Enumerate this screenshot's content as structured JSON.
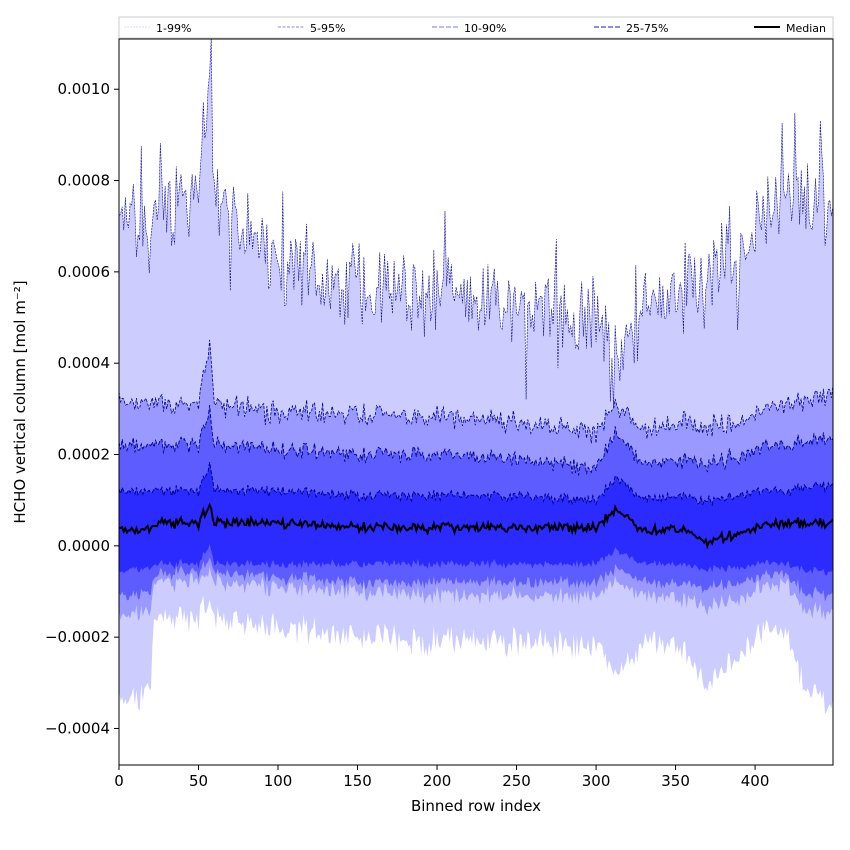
{
  "chart_data": {
    "type": "area",
    "xlabel": "Binned row index",
    "ylabel": "HCHO vertical column [mol m⁻²]",
    "xlim": [
      0,
      449
    ],
    "ylim": [
      -0.00048,
      0.00111
    ],
    "x_ticks": [
      0,
      50,
      100,
      150,
      200,
      250,
      300,
      350,
      400
    ],
    "y_ticks": [
      -0.0004,
      -0.0002,
      0.0,
      0.0002,
      0.0004,
      0.0006,
      0.0008,
      0.001
    ],
    "y_tick_labels": [
      "−0.0004",
      "−0.0002",
      "0.0000",
      "0.0002",
      "0.0004",
      "0.0006",
      "0.0008",
      "0.0010"
    ],
    "legend_position": "top (above plot, single row)",
    "legend": [
      "1-99%",
      "5-95%",
      "10-90%",
      "25-75%",
      "Median"
    ],
    "colors": {
      "band_1_99": "#ccccff",
      "band_5_95": "#9999ff",
      "band_10_90": "#5c5cff",
      "band_25_75": "#2b2bff",
      "percentile_line": "#00008b",
      "median_line": "#000000"
    },
    "series_profile": {
      "x": [
        0,
        10,
        20,
        22,
        25,
        50,
        57,
        60,
        100,
        150,
        200,
        250,
        300,
        313,
        330,
        350,
        371,
        400,
        420,
        430,
        449
      ],
      "p99": [
        0.00072,
        0.00074,
        0.00066,
        0.00071,
        0.00072,
        0.00078,
        0.00104,
        0.00075,
        0.00062,
        0.00056,
        0.00056,
        0.00052,
        0.0005,
        0.0004,
        0.00051,
        0.00057,
        0.00061,
        0.00068,
        0.0008,
        0.00075,
        0.0007
      ],
      "p95": [
        0.00032,
        0.00031,
        0.00031,
        0.00031,
        0.00031,
        0.00031,
        0.00044,
        0.00031,
        0.00029,
        0.00029,
        0.00028,
        0.00027,
        0.00025,
        0.00031,
        0.00025,
        0.00027,
        0.00026,
        0.00029,
        0.00031,
        0.00032,
        0.00033
      ],
      "p90": [
        0.00022,
        0.00022,
        0.00022,
        0.00022,
        0.00022,
        0.00022,
        0.0003,
        0.00022,
        0.00021,
        0.0002,
        0.0002,
        0.00019,
        0.00017,
        0.00025,
        0.00018,
        0.00019,
        0.00018,
        0.00021,
        0.00022,
        0.00023,
        0.00023
      ],
      "p75": [
        0.00012,
        0.00012,
        0.00012,
        0.00012,
        0.00012,
        0.00012,
        0.00018,
        0.00012,
        0.00012,
        0.00011,
        0.00011,
        0.00011,
        0.0001,
        0.00015,
        0.0001,
        0.00011,
        0.0001,
        0.00012,
        0.00012,
        0.00013,
        0.00013
      ],
      "median": [
        4e-05,
        3e-05,
        4e-05,
        4e-05,
        5e-05,
        5e-05,
        9e-05,
        5e-05,
        5e-05,
        4e-05,
        4e-05,
        4e-05,
        4e-05,
        8e-05,
        3e-05,
        4e-05,
        1e-05,
        4e-05,
        5e-05,
        5e-05,
        5e-05
      ],
      "p25": [
        -6e-05,
        -5e-05,
        -5e-05,
        -4e-05,
        -4e-05,
        -4e-05,
        0.0,
        -4e-05,
        -4e-05,
        -4e-05,
        -4e-05,
        -4e-05,
        -4e-05,
        -1e-05,
        -4e-05,
        -4e-05,
        -5e-05,
        -4e-05,
        -4e-05,
        -5e-05,
        -6e-05
      ],
      "p10": [
        -0.00011,
        -0.00011,
        -0.0001,
        -7e-05,
        -6e-05,
        -6e-05,
        -3e-05,
        -6e-05,
        -7e-05,
        -8e-05,
        -8e-05,
        -8e-05,
        -8e-05,
        -5e-05,
        -8e-05,
        -8e-05,
        -9e-05,
        -7e-05,
        -6e-05,
        -0.0001,
        -0.00011
      ],
      "p5": [
        -0.00015,
        -0.00015,
        -0.00014,
        -9e-05,
        -8e-05,
        -8e-05,
        -5e-05,
        -8e-05,
        -9e-05,
        -0.0001,
        -0.00011,
        -0.00011,
        -0.00011,
        -8e-05,
        -0.00011,
        -0.00011,
        -0.00013,
        -0.0001,
        -8e-05,
        -0.00014,
        -0.00015
      ],
      "p1": [
        -0.00033,
        -0.00034,
        -0.00031,
        -0.00017,
        -0.00016,
        -0.00016,
        -0.00012,
        -0.00016,
        -0.00018,
        -0.0002,
        -0.00021,
        -0.00021,
        -0.00022,
        -0.00028,
        -0.00021,
        -0.00021,
        -0.0003,
        -0.0002,
        -0.00018,
        -0.0003,
        -0.00036
      ]
    }
  }
}
